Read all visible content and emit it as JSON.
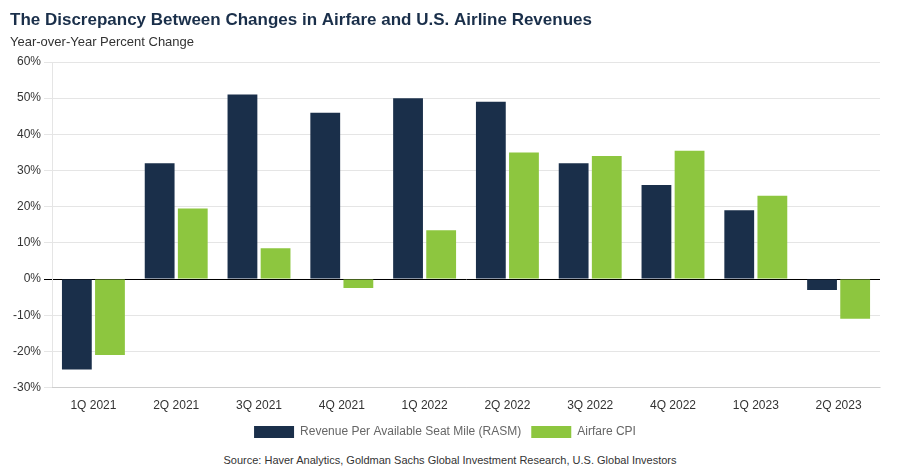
{
  "chart_data": {
    "type": "bar",
    "title": "The Discrepancy Between Changes in Airfare and U.S. Airline Revenues",
    "subtitle": "Year-over-Year Percent Change",
    "source": "Source: Haver Analytics, Goldman Sachs Global Investment Research, U.S. Global Investors",
    "categories": [
      "1Q 2021",
      "2Q 2021",
      "3Q 2021",
      "4Q 2021",
      "1Q 2022",
      "2Q 2022",
      "3Q 2022",
      "4Q 2022",
      "1Q 2023",
      "2Q 2023"
    ],
    "series": [
      {
        "name": "Revenue Per Available Seat Mile (RASM)",
        "color": "#1a2f4a",
        "values": [
          -25,
          32,
          51,
          46,
          50,
          49,
          32,
          26,
          19,
          -3
        ]
      },
      {
        "name": "Airfare CPI",
        "color": "#8dc63f",
        "values": [
          -21,
          19.5,
          8.5,
          -2.5,
          13.5,
          35,
          34,
          35.5,
          23,
          -11
        ]
      }
    ],
    "ylim": [
      -30,
      60
    ],
    "yticks": [
      {
        "value": -30,
        "label": "-30%"
      },
      {
        "value": -20,
        "label": "-20%"
      },
      {
        "value": -10,
        "label": "-10%"
      },
      {
        "value": 0,
        "label": "0%"
      },
      {
        "value": 10,
        "label": "10%"
      },
      {
        "value": 20,
        "label": "20%"
      },
      {
        "value": 30,
        "label": "30%"
      },
      {
        "value": 40,
        "label": "40%"
      },
      {
        "value": 50,
        "label": "50%"
      },
      {
        "value": 60,
        "label": "60%"
      }
    ],
    "grid": true,
    "legend": "bottom"
  }
}
